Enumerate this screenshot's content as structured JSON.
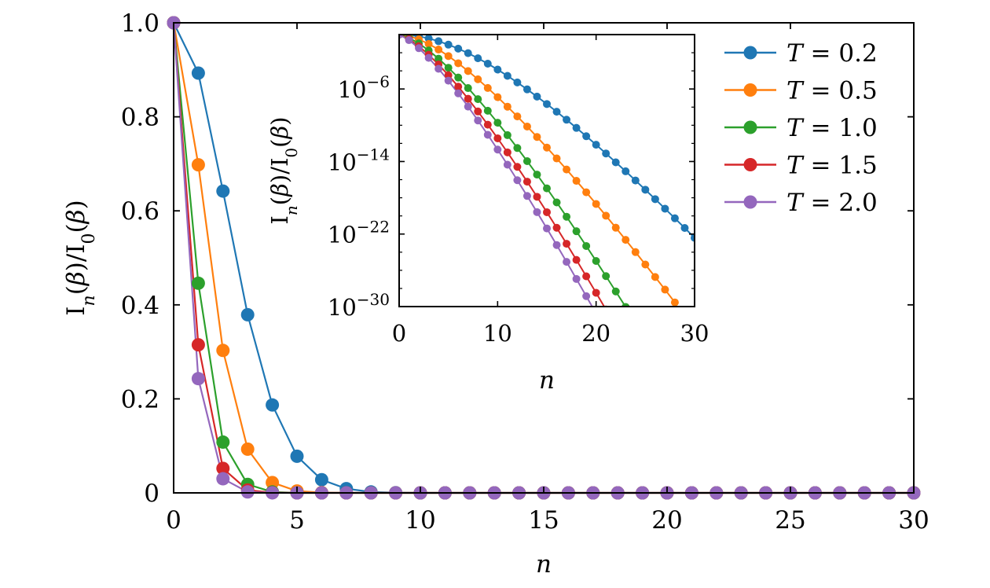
{
  "chart_data": {
    "type": "line",
    "main": {
      "x": [
        0,
        1,
        2,
        3,
        4,
        5,
        6,
        7,
        8,
        9,
        10,
        11,
        12,
        13,
        14,
        15,
        16,
        17,
        18,
        19,
        20,
        21,
        22,
        23,
        24,
        25,
        26,
        27,
        28,
        29,
        30
      ],
      "xlim": [
        0,
        30
      ],
      "ylim": [
        0,
        1.0
      ],
      "xticks": [
        "0",
        "5",
        "10",
        "15",
        "20",
        "25",
        "30"
      ],
      "xtick_values": [
        0,
        5,
        10,
        15,
        20,
        25,
        30
      ],
      "yticks": [
        "0",
        "0.2",
        "0.4",
        "0.6",
        "0.8",
        "1.0"
      ],
      "ytick_values": [
        0,
        0.2,
        0.4,
        0.6,
        0.8,
        1.0
      ],
      "xlabel": "n",
      "ylabel": "I_n(β)/I_0(β)",
      "series": [
        {
          "name": "T=0.2",
          "color": "#1f77b4",
          "values": [
            1.0,
            0.893,
            0.642,
            0.379,
            0.187,
            0.078,
            0.028,
            0.009,
            0.002,
            0.0005,
            0,
            0,
            0,
            0,
            0,
            0,
            0,
            0,
            0,
            0,
            0,
            0,
            0,
            0,
            0,
            0,
            0,
            0,
            0,
            0,
            0
          ]
        },
        {
          "name": "T=0.5",
          "color": "#ff7f0e",
          "values": [
            1.0,
            0.698,
            0.303,
            0.093,
            0.022,
            0.004,
            0.0007,
            0,
            0,
            0,
            0,
            0,
            0,
            0,
            0,
            0,
            0,
            0,
            0,
            0,
            0,
            0,
            0,
            0,
            0,
            0,
            0,
            0,
            0,
            0,
            0
          ]
        },
        {
          "name": "T=1.0",
          "color": "#2ca02c",
          "values": [
            1.0,
            0.446,
            0.108,
            0.018,
            0.002,
            0,
            0,
            0,
            0,
            0,
            0,
            0,
            0,
            0,
            0,
            0,
            0,
            0,
            0,
            0,
            0,
            0,
            0,
            0,
            0,
            0,
            0,
            0,
            0,
            0,
            0
          ]
        },
        {
          "name": "T=1.5",
          "color": "#d62728",
          "values": [
            1.0,
            0.315,
            0.052,
            0.006,
            0.0005,
            0,
            0,
            0,
            0,
            0,
            0,
            0,
            0,
            0,
            0,
            0,
            0,
            0,
            0,
            0,
            0,
            0,
            0,
            0,
            0,
            0,
            0,
            0,
            0,
            0,
            0
          ]
        },
        {
          "name": "T=2.0",
          "color": "#9467bd",
          "values": [
            1.0,
            0.243,
            0.03,
            0.002,
            0.0001,
            0,
            0,
            0,
            0,
            0,
            0,
            0,
            0,
            0,
            0,
            0,
            0,
            0,
            0,
            0,
            0,
            0,
            0,
            0,
            0,
            0,
            0,
            0,
            0,
            0,
            0
          ]
        }
      ]
    },
    "inset": {
      "xlim": [
        0,
        30
      ],
      "ylim_log10": [
        -30,
        0
      ],
      "xticks": [
        "0",
        "10",
        "20",
        "30"
      ],
      "xtick_values": [
        0,
        10,
        20,
        30
      ],
      "yticks_exp": [
        "-6",
        "-14",
        "-22",
        "-30"
      ],
      "ytick_values_log10": [
        -6,
        -14,
        -22,
        -30
      ],
      "ytick_base": "10",
      "xlabel": "n",
      "ylabel": "I_n(β)/I_0(β)",
      "series": [
        {
          "name": "T=0.2",
          "color": "#1f77b4",
          "points": [
            [
              0,
              0
            ],
            [
              1,
              -0.05
            ],
            [
              2,
              -0.19
            ],
            [
              3,
              -0.42
            ],
            [
              4,
              -0.73
            ],
            [
              5,
              -1.11
            ],
            [
              6,
              -1.55
            ],
            [
              7,
              -2.05
            ],
            [
              8,
              -2.61
            ],
            [
              9,
              -3.21
            ],
            [
              10,
              -3.86
            ],
            [
              11,
              -4.55
            ],
            [
              12,
              -5.28
            ],
            [
              13,
              -6.04
            ],
            [
              14,
              -6.84
            ],
            [
              15,
              -7.66
            ],
            [
              16,
              -8.51
            ],
            [
              17,
              -9.39
            ],
            [
              18,
              -10.29
            ],
            [
              19,
              -11.21
            ],
            [
              20,
              -12.15
            ],
            [
              21,
              -13.11
            ],
            [
              22,
              -14.09
            ],
            [
              23,
              -15.08
            ],
            [
              24,
              -16.09
            ],
            [
              25,
              -17.11
            ],
            [
              26,
              -18.15
            ],
            [
              27,
              -19.2
            ],
            [
              28,
              -20.26
            ],
            [
              29,
              -21.33
            ],
            [
              30,
              -22.42
            ]
          ]
        },
        {
          "name": "T=0.5",
          "color": "#ff7f0e",
          "points": [
            [
              0,
              0
            ],
            [
              1,
              -0.16
            ],
            [
              2,
              -0.52
            ],
            [
              3,
              -1.03
            ],
            [
              4,
              -1.65
            ],
            [
              5,
              -2.37
            ],
            [
              6,
              -3.16
            ],
            [
              7,
              -4.02
            ],
            [
              8,
              -4.93
            ],
            [
              9,
              -5.89
            ],
            [
              10,
              -6.9
            ],
            [
              11,
              -7.95
            ],
            [
              12,
              -9.03
            ],
            [
              13,
              -10.14
            ],
            [
              14,
              -11.29
            ],
            [
              15,
              -12.46
            ],
            [
              16,
              -13.66
            ],
            [
              17,
              -14.88
            ],
            [
              18,
              -16.13
            ],
            [
              19,
              -17.39
            ],
            [
              20,
              -18.68
            ],
            [
              21,
              -19.98
            ],
            [
              22,
              -21.3
            ],
            [
              23,
              -22.64
            ],
            [
              24,
              -23.99
            ],
            [
              25,
              -25.36
            ],
            [
              26,
              -26.74
            ],
            [
              27,
              -28.13
            ],
            [
              28,
              -29.54
            ]
          ]
        },
        {
          "name": "T=1.0",
          "color": "#2ca02c",
          "points": [
            [
              0,
              0
            ],
            [
              1,
              -0.35
            ],
            [
              2,
              -0.97
            ],
            [
              3,
              -1.75
            ],
            [
              4,
              -2.65
            ],
            [
              5,
              -3.66
            ],
            [
              6,
              -4.74
            ],
            [
              7,
              -5.9
            ],
            [
              8,
              -7.12
            ],
            [
              9,
              -8.4
            ],
            [
              10,
              -9.72
            ],
            [
              11,
              -11.09
            ],
            [
              12,
              -12.51
            ],
            [
              13,
              -13.96
            ],
            [
              14,
              -15.44
            ],
            [
              15,
              -16.96
            ],
            [
              16,
              -18.51
            ],
            [
              17,
              -20.09
            ],
            [
              18,
              -21.69
            ],
            [
              19,
              -23.32
            ],
            [
              20,
              -24.97
            ],
            [
              21,
              -26.64
            ],
            [
              22,
              -28.33
            ],
            [
              23,
              -30.04
            ]
          ]
        },
        {
          "name": "T=1.5",
          "color": "#d62728",
          "points": [
            [
              0,
              0
            ],
            [
              1,
              -0.5
            ],
            [
              2,
              -1.28
            ],
            [
              3,
              -2.22
            ],
            [
              4,
              -3.3
            ],
            [
              5,
              -4.48
            ],
            [
              6,
              -5.74
            ],
            [
              7,
              -7.08
            ],
            [
              8,
              -8.48
            ],
            [
              9,
              -9.94
            ],
            [
              10,
              -11.44
            ],
            [
              11,
              -12.99
            ],
            [
              12,
              -14.59
            ],
            [
              13,
              -16.22
            ],
            [
              14,
              -17.89
            ],
            [
              15,
              -19.59
            ],
            [
              16,
              -21.31
            ],
            [
              17,
              -23.07
            ],
            [
              18,
              -24.85
            ],
            [
              19,
              -26.66
            ],
            [
              20,
              -28.48
            ],
            [
              21,
              -30.33
            ]
          ]
        },
        {
          "name": "T=2.0",
          "color": "#9467bd",
          "points": [
            [
              0,
              0
            ],
            [
              1,
              -0.61
            ],
            [
              2,
              -1.5
            ],
            [
              3,
              -2.57
            ],
            [
              4,
              -3.77
            ],
            [
              5,
              -5.08
            ],
            [
              6,
              -6.48
            ],
            [
              7,
              -7.94
            ],
            [
              8,
              -9.47
            ],
            [
              9,
              -11.05
            ],
            [
              10,
              -12.68
            ],
            [
              11,
              -14.35
            ],
            [
              12,
              -16.06
            ],
            [
              13,
              -17.8
            ],
            [
              14,
              -19.58
            ],
            [
              15,
              -21.38
            ],
            [
              16,
              -23.21
            ],
            [
              17,
              -25.07
            ],
            [
              18,
              -26.95
            ],
            [
              19,
              -28.85
            ],
            [
              20,
              -30.77
            ]
          ]
        }
      ]
    },
    "legend": {
      "placement": "top-right",
      "entries": [
        {
          "label_var": "T",
          "eq": "=",
          "value": "0.2",
          "color": "#1f77b4"
        },
        {
          "label_var": "T",
          "eq": "=",
          "value": "0.5",
          "color": "#ff7f0e"
        },
        {
          "label_var": "T",
          "eq": "=",
          "value": "1.0",
          "color": "#2ca02c"
        },
        {
          "label_var": "T",
          "eq": "=",
          "value": "1.5",
          "color": "#d62728"
        },
        {
          "label_var": "T",
          "eq": "=",
          "value": "2.0",
          "color": "#9467bd"
        }
      ]
    }
  }
}
